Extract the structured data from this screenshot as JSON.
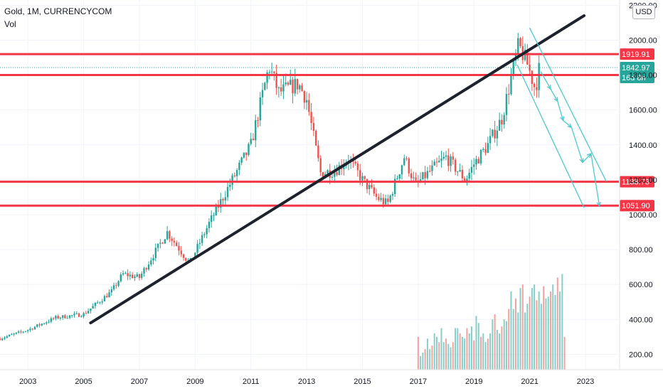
{
  "header": {
    "title": "Gold, 1M, CURRENCYCOM",
    "indicator": "Vol"
  },
  "currency_badge": "USD",
  "colors": {
    "bull": "#26a69a",
    "bear": "#ef5350",
    "level": "#f23645",
    "trend": "#1e222d",
    "projection": "#4cc9cc",
    "grid": "#f0f3fa"
  },
  "chart_data": {
    "type": "candlestick",
    "title": "Gold, 1M, CURRENCYCOM",
    "x_range": [
      2002.0,
      2024.2
    ],
    "y_range": [
      112,
      2230
    ],
    "y_ticks": [
      200,
      400,
      600,
      800,
      1000,
      1200,
      1400,
      1600,
      1800,
      2000,
      2200
    ],
    "y_tick_labels": [
      "200.00",
      "400.00",
      "600.00",
      "800.00",
      "1000.00",
      "1200.00",
      "1400.00",
      "1600.00",
      "1800.00",
      "2000.00",
      "2200.00"
    ],
    "x_ticks": [
      2003,
      2005,
      2007,
      2009,
      2011,
      2013,
      2015,
      2017,
      2019,
      2021,
      2023
    ],
    "price_path": [
      [
        2002.0,
        290
      ],
      [
        2003.0,
        340
      ],
      [
        2004.0,
        410
      ],
      [
        2005.0,
        430
      ],
      [
        2006.0,
        560
      ],
      [
        2006.4,
        660
      ],
      [
        2007.0,
        640
      ],
      [
        2008.0,
        900
      ],
      [
        2008.8,
        720
      ],
      [
        2009.5,
        950
      ],
      [
        2010.0,
        1100
      ],
      [
        2011.0,
        1400
      ],
      [
        2011.65,
        1850
      ],
      [
        2012.0,
        1700
      ],
      [
        2012.7,
        1750
      ],
      [
        2013.0,
        1660
      ],
      [
        2013.3,
        1400
      ],
      [
        2013.5,
        1240
      ],
      [
        2014.0,
        1250
      ],
      [
        2014.5,
        1320
      ],
      [
        2015.0,
        1200
      ],
      [
        2015.5,
        1100
      ],
      [
        2015.9,
        1060
      ],
      [
        2016.5,
        1330
      ],
      [
        2016.9,
        1170
      ],
      [
        2017.5,
        1260
      ],
      [
        2018.0,
        1330
      ],
      [
        2018.7,
        1200
      ],
      [
        2019.0,
        1290
      ],
      [
        2019.5,
        1400
      ],
      [
        2020.0,
        1550
      ],
      [
        2020.6,
        1970
      ],
      [
        2020.9,
        1870
      ],
      [
        2021.2,
        1720
      ],
      [
        2021.35,
        1843
      ]
    ],
    "volume": {
      "start": 2017.0,
      "values": [
        300,
        190,
        210,
        230,
        290,
        230,
        250,
        320,
        300,
        270,
        350,
        270,
        290,
        260,
        240,
        270,
        350,
        350,
        320,
        300,
        290,
        350,
        320,
        360,
        280,
        420,
        380,
        300,
        320,
        270,
        290,
        320,
        400,
        430,
        340,
        320,
        360,
        400,
        390,
        460,
        560,
        460,
        520,
        440,
        580,
        600,
        440,
        490,
        530,
        580,
        600,
        510,
        560,
        490,
        590,
        520,
        530,
        560,
        600,
        540,
        640,
        560,
        660,
        300
      ],
      "bear_every": 3
    },
    "levels": [
      {
        "value": 1919.91,
        "label": "1919.91"
      },
      {
        "value": 1800.19,
        "label": "1800.19"
      },
      {
        "value": 1188.73,
        "label": "1188.73"
      },
      {
        "value": 1051.9,
        "label": "1051.90"
      }
    ],
    "last_price": {
      "value": 1842.97,
      "label": "1842.97",
      "countdown": "16d 8h"
    },
    "trendline": [
      [
        2005.25,
        380
      ],
      [
        2022.95,
        2140
      ]
    ],
    "channel": {
      "upper": [
        [
          2021.0,
          2070
        ],
        [
          2023.75,
          1190
        ]
      ],
      "lower": [
        [
          2020.55,
          1860
        ],
        [
          2022.95,
          1040
        ]
      ],
      "zigzag": [
        [
          2021.4,
          1820
        ],
        [
          2021.75,
          1720
        ],
        [
          2022.0,
          1650
        ],
        [
          2022.2,
          1540
        ],
        [
          2022.5,
          1500
        ],
        [
          2022.9,
          1300
        ],
        [
          2023.2,
          1350
        ],
        [
          2023.5,
          1050
        ]
      ]
    }
  }
}
